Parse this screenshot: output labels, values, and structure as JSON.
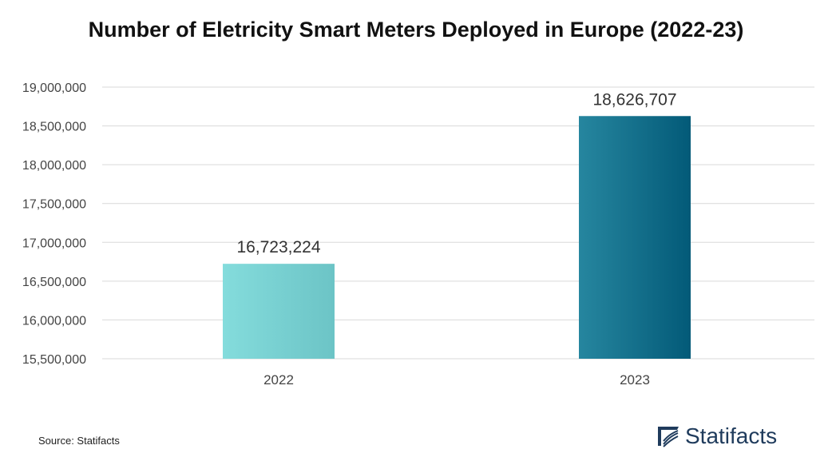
{
  "chart_data": {
    "type": "bar",
    "title": "Number of Eletricity Smart Meters Deployed in Europe (2022-23)",
    "categories": [
      "2022",
      "2023"
    ],
    "values": [
      16723224,
      18626707
    ],
    "value_labels": [
      "16,723,224",
      "18,626,707"
    ],
    "xlabel": "",
    "ylabel": "",
    "ylim": [
      15500000,
      19000000
    ],
    "yticks": [
      15500000,
      16000000,
      16500000,
      17000000,
      17500000,
      18000000,
      18500000,
      19000000
    ],
    "ytick_labels": [
      "15,500,000",
      "16,000,000",
      "16,500,000",
      "17,000,000",
      "17,500,000",
      "18,000,000",
      "18,500,000",
      "19,000,000"
    ],
    "grid": true,
    "bar_colors": [
      [
        "#84dcdc",
        "#6cc4c6"
      ],
      [
        "#26869f",
        "#035a78"
      ]
    ]
  },
  "footer": {
    "source": "Source: Statifacts",
    "brand": "Statifacts"
  },
  "colors": {
    "gridline": "#d9d9d9",
    "tick_text": "#444444",
    "brand": "#1f3b5c"
  }
}
